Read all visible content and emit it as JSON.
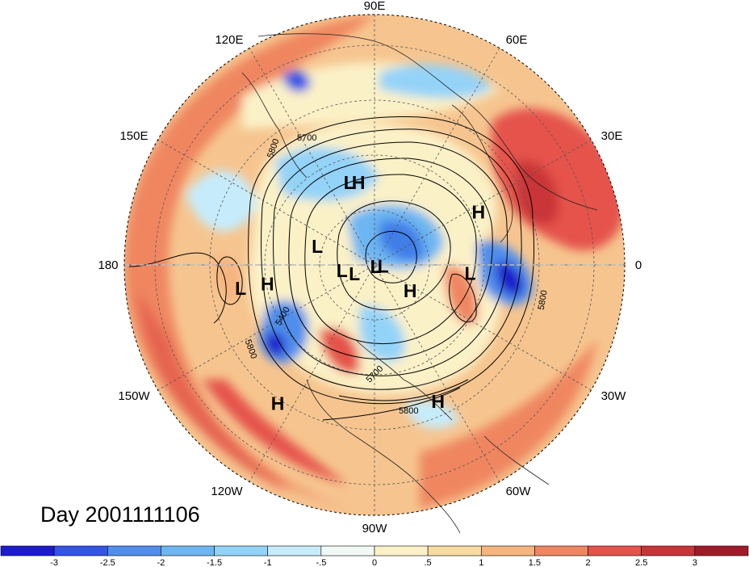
{
  "title": "Day 2001111106",
  "longitude_labels": [
    {
      "key": "lon-90e",
      "text": "90E"
    },
    {
      "key": "lon-60e",
      "text": "60E"
    },
    {
      "key": "lon-30e",
      "text": "30E"
    },
    {
      "key": "lon-0",
      "text": "0"
    },
    {
      "key": "lon-30w",
      "text": "30W"
    },
    {
      "key": "lon-60w",
      "text": "60W"
    },
    {
      "key": "lon-90w",
      "text": "90W"
    },
    {
      "key": "lon-120w",
      "text": "120W"
    },
    {
      "key": "lon-150w",
      "text": "150W"
    },
    {
      "key": "lon-180",
      "text": "180"
    },
    {
      "key": "lon-150e",
      "text": "150E"
    },
    {
      "key": "lon-120e",
      "text": "120E"
    }
  ],
  "pressure_centers": [
    {
      "type": "L",
      "lon": 107,
      "lat": 52
    },
    {
      "type": "H",
      "lon": 101,
      "lat": 53
    },
    {
      "type": "L",
      "lon": 162,
      "lat": 63
    },
    {
      "type": "L",
      "lon": -170,
      "lat": 33
    },
    {
      "type": "L",
      "lon": -170,
      "lat": 75
    },
    {
      "type": "H",
      "lon": -170,
      "lat": 43
    },
    {
      "type": "L",
      "lon": -156,
      "lat": 80
    },
    {
      "type": "L",
      "lon": -7,
      "lat": 86
    },
    {
      "type": "L",
      "lon": -55,
      "lat": 89
    },
    {
      "type": "L",
      "lon": -5,
      "lat": 48
    },
    {
      "type": "H",
      "lon": -36,
      "lat": 70
    },
    {
      "type": "H",
      "lon": 27,
      "lat": 40
    },
    {
      "type": "H",
      "lon": -125,
      "lat": 22
    },
    {
      "type": "H",
      "lon": -65,
      "lat": 28
    }
  ],
  "contour_labels": [
    "5700",
    "5800",
    "5400",
    "5800",
    "5700",
    "5800",
    "5800"
  ],
  "colorbar": {
    "ticks": [
      "-3",
      "-2.5",
      "-2",
      "-1.5",
      "-1",
      "-.5",
      "0",
      ".5",
      "1",
      "1.5",
      "2",
      "2.5",
      "3"
    ],
    "colors": [
      "#1c1ccc",
      "#3355e6",
      "#4f8eec",
      "#6db6f2",
      "#94d3f8",
      "#c6ecfb",
      "#f1f9f4",
      "#fbf1c7",
      "#f8dba0",
      "#f6b47f",
      "#ef8661",
      "#e5534b",
      "#c93438",
      "#a11a2a"
    ]
  }
}
